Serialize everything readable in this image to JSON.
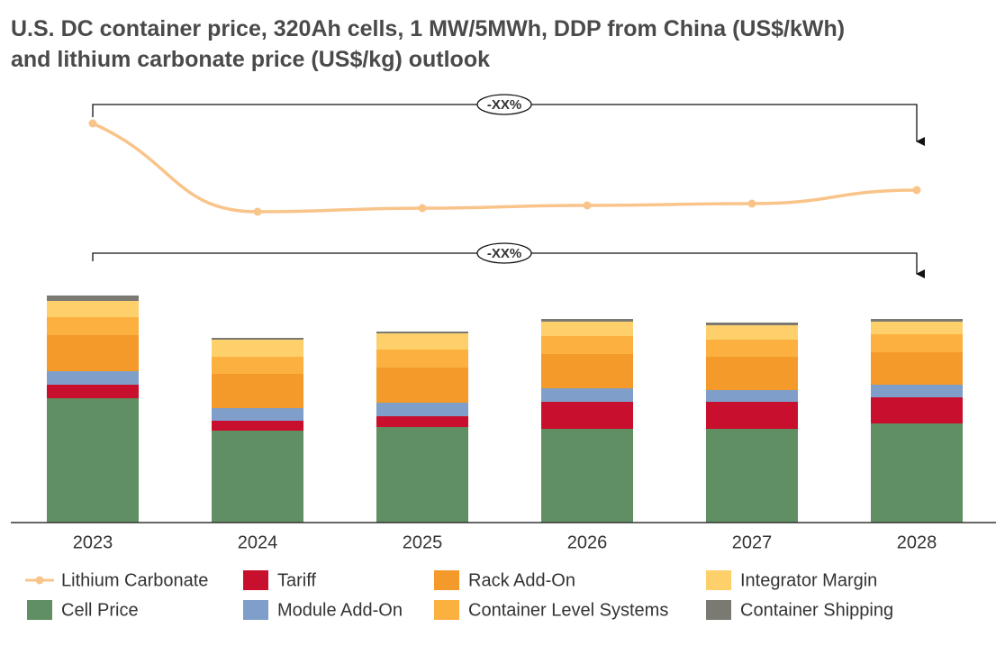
{
  "chart_data": {
    "type": "bar",
    "title": [
      "U.S. DC container price, 320Ah cells, 1 MW/5MWh, DDP from China (US$/kWh)",
      "and lithium carbonate price (US$/kg) outlook"
    ],
    "categories": [
      "2023",
      "2024",
      "2025",
      "2026",
      "2027",
      "2028"
    ],
    "series": [
      {
        "name": "Lithium Carbonate",
        "type": "line",
        "color": "#f9c48a",
        "values": [
          443,
          345,
          349,
          352,
          354,
          369
        ]
      },
      {
        "name": "Cell Price",
        "color": "#5f8f62",
        "values": [
          138,
          102,
          106,
          104,
          104,
          110
        ]
      },
      {
        "name": "Tariff",
        "color": "#c8102e",
        "values": [
          15,
          11,
          12,
          30,
          30,
          29
        ]
      },
      {
        "name": "Module Add-On",
        "color": "#7f9ec9",
        "values": [
          15,
          14,
          15,
          15,
          13,
          14
        ]
      },
      {
        "name": "Rack Add-On",
        "color": "#f39a2b",
        "values": [
          40,
          38,
          39,
          38,
          37,
          36
        ]
      },
      {
        "name": "Container Level Systems",
        "color": "#fbb040",
        "values": [
          20,
          19,
          20,
          20,
          19,
          20
        ]
      },
      {
        "name": "Integrator Margin",
        "color": "#fdd06b",
        "values": [
          18,
          19,
          18,
          16,
          16,
          14
        ]
      },
      {
        "name": "Container Shipping",
        "color": "#7a7a72",
        "values": [
          6,
          2,
          2,
          3,
          3,
          3
        ]
      }
    ],
    "annotations": [
      "-XX%",
      "-XX%"
    ]
  }
}
